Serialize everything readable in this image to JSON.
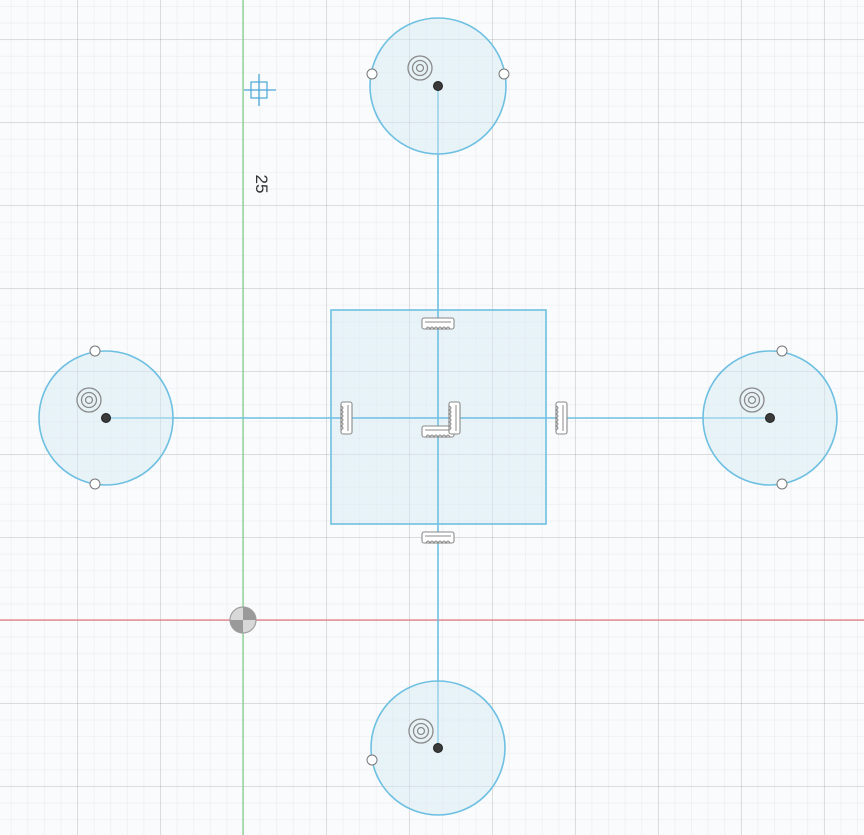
{
  "viewport": {
    "background_color": "#fafbfc",
    "sketch_color": "#6ec0e2",
    "x_axis_color": "#e57a84",
    "y_axis_color": "#7fd18b"
  },
  "dimension": {
    "value": "25"
  },
  "icons": {
    "origin": "origin-icon",
    "sketch_cursor": "crosshair-icon",
    "fix_constraint": "fix-constraint-icon",
    "horizontal_vertical_constraint": "horizontal-vertical-constraint-icon"
  }
}
